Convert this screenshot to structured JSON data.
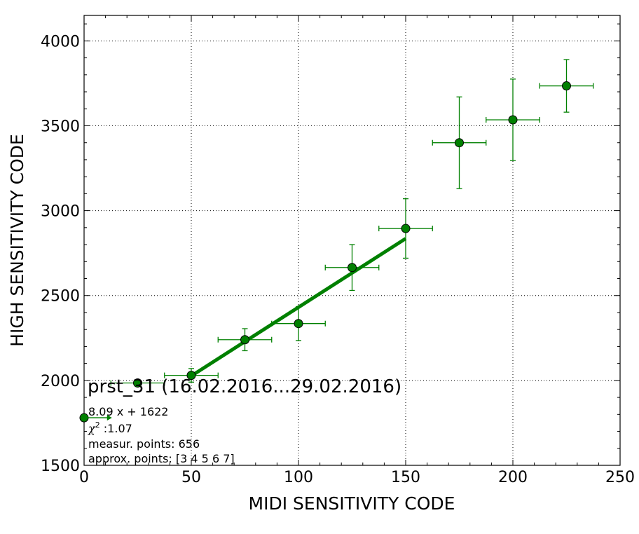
{
  "chart_data": {
    "type": "scatter",
    "xlabel": "MIDI SENSITIVITY CODE",
    "ylabel": "HIGH SENSITIVITY CODE",
    "xlim": [
      0,
      250
    ],
    "ylim": [
      1500,
      4150
    ],
    "x_ticks": [
      "0",
      "50",
      "100",
      "150",
      "200",
      "250"
    ],
    "y_ticks": [
      "1500",
      "2000",
      "2500",
      "3000",
      "3500",
      "4000"
    ],
    "grid": true,
    "color": "#008000",
    "points": [
      {
        "x": 0,
        "y": 1780,
        "xerr": 0,
        "yerr": 0
      },
      {
        "x": 25,
        "y": 1985,
        "xerr": 12.5,
        "yerr": 10
      },
      {
        "x": 50,
        "y": 2030,
        "xerr": 12.5,
        "yerr": 40
      },
      {
        "x": 75,
        "y": 2240,
        "xerr": 12.5,
        "yerr": 65
      },
      {
        "x": 100,
        "y": 2335,
        "xerr": 12.5,
        "yerr": 100
      },
      {
        "x": 125,
        "y": 2665,
        "xerr": 12.5,
        "yerr": 135
      },
      {
        "x": 150,
        "y": 2895,
        "xerr": 12.5,
        "yerr": 175
      },
      {
        "x": 175,
        "y": 3400,
        "xerr": 12.5,
        "yerr": 270
      },
      {
        "x": 200,
        "y": 3535,
        "xerr": 12.5,
        "yerr": 240
      },
      {
        "x": 225,
        "y": 3735,
        "xerr": 12.5,
        "yerr": 155
      }
    ],
    "fit_line": {
      "slope": 8.09,
      "intercept": 1622,
      "x_start": 50,
      "x_end": 150
    },
    "arrow": {
      "x_start": 0,
      "x_end": 13,
      "y": 1780
    },
    "annotations": {
      "title": "prst_31 (16.02.2016...29.02.2016)",
      "equation": "8.09 x + 1622",
      "chi2_symbol": "χ",
      "chi2_power": "2",
      "chi2_value": " :1.07",
      "measur_points": "measur. points: 656",
      "approx_points": "approx. points: [3 4 5 6 7]"
    }
  }
}
